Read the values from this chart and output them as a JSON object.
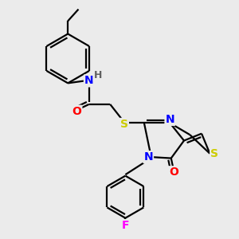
{
  "bg_color": "#ebebeb",
  "atom_colors": {
    "C": "#000000",
    "N": "#0000ff",
    "O": "#ff0000",
    "S": "#cccc00",
    "F": "#ff00ff",
    "H": "#606060"
  },
  "bond_color": "#000000",
  "bond_width": 1.6,
  "fig_width": 3.0,
  "fig_height": 3.0,
  "dpi": 100
}
